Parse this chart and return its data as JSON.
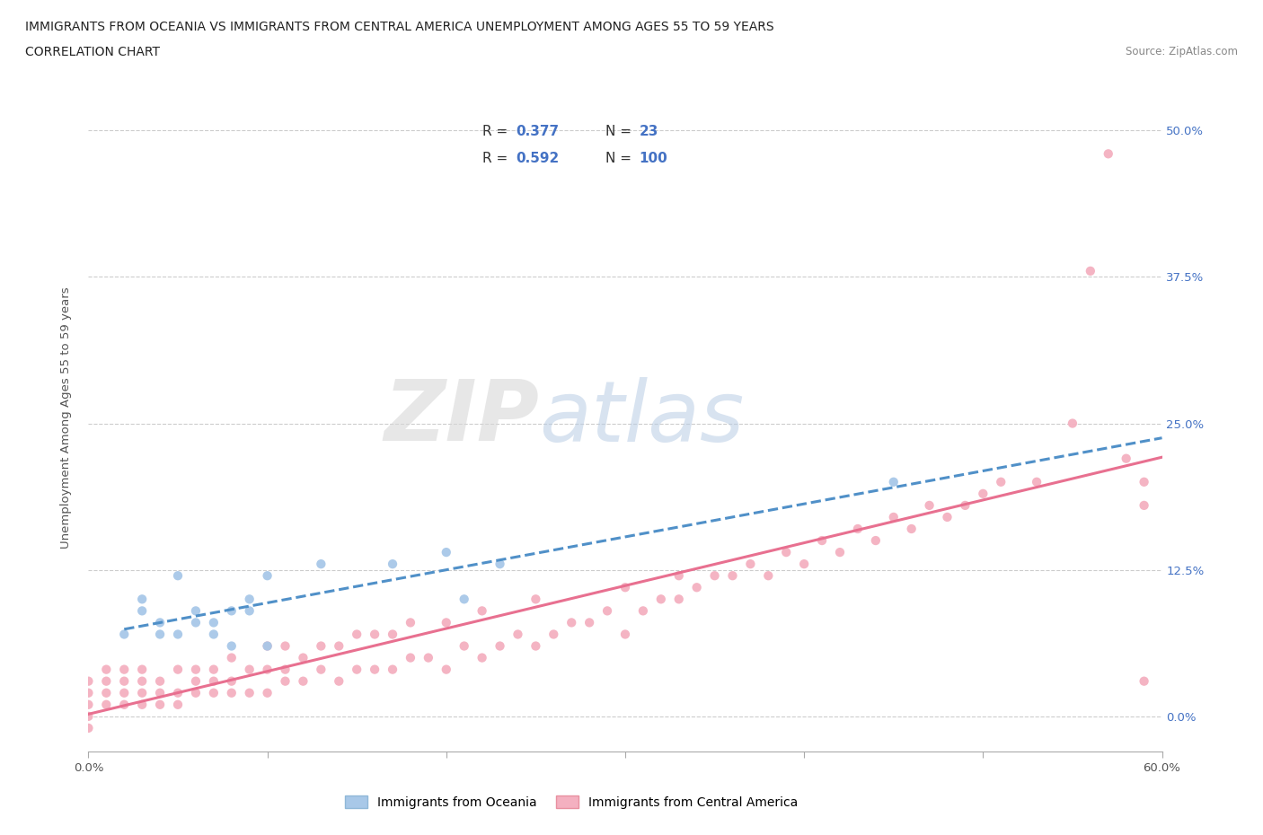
{
  "title_line1": "IMMIGRANTS FROM OCEANIA VS IMMIGRANTS FROM CENTRAL AMERICA UNEMPLOYMENT AMONG AGES 55 TO 59 YEARS",
  "title_line2": "CORRELATION CHART",
  "source_text": "Source: ZipAtlas.com",
  "ylabel": "Unemployment Among Ages 55 to 59 years",
  "xlim": [
    0.0,
    0.6
  ],
  "ylim": [
    -0.03,
    0.54
  ],
  "xtick_vals": [
    0.0,
    0.1,
    0.2,
    0.3,
    0.4,
    0.5,
    0.6
  ],
  "ytick_vals": [
    0.0,
    0.125,
    0.25,
    0.375,
    0.5
  ],
  "ytick_labels": [
    "0.0%",
    "12.5%",
    "25.0%",
    "37.5%",
    "50.0%"
  ],
  "r_oceania": 0.377,
  "n_oceania": 23,
  "r_central": 0.592,
  "n_central": 100,
  "oceania_color": "#a8c8e8",
  "central_color": "#f4b0c0",
  "line_oceania_color": "#5090c8",
  "line_central_color": "#e87090",
  "watermark_1": "ZIP",
  "watermark_2": "atlas",
  "oceania_scatter_x": [
    0.02,
    0.03,
    0.03,
    0.04,
    0.04,
    0.05,
    0.05,
    0.06,
    0.06,
    0.07,
    0.07,
    0.08,
    0.08,
    0.09,
    0.09,
    0.1,
    0.1,
    0.13,
    0.17,
    0.2,
    0.21,
    0.23,
    0.45
  ],
  "oceania_scatter_y": [
    0.07,
    0.09,
    0.1,
    0.07,
    0.08,
    0.07,
    0.12,
    0.08,
    0.09,
    0.07,
    0.08,
    0.06,
    0.09,
    0.09,
    0.1,
    0.06,
    0.12,
    0.13,
    0.13,
    0.14,
    0.1,
    0.13,
    0.2
  ],
  "central_scatter_x": [
    0.0,
    0.0,
    0.0,
    0.0,
    0.0,
    0.01,
    0.01,
    0.01,
    0.01,
    0.02,
    0.02,
    0.02,
    0.02,
    0.03,
    0.03,
    0.03,
    0.03,
    0.04,
    0.04,
    0.04,
    0.05,
    0.05,
    0.05,
    0.06,
    0.06,
    0.06,
    0.07,
    0.07,
    0.07,
    0.08,
    0.08,
    0.08,
    0.09,
    0.09,
    0.1,
    0.1,
    0.1,
    0.11,
    0.11,
    0.11,
    0.12,
    0.12,
    0.13,
    0.13,
    0.14,
    0.14,
    0.15,
    0.15,
    0.16,
    0.16,
    0.17,
    0.17,
    0.18,
    0.18,
    0.19,
    0.2,
    0.2,
    0.21,
    0.22,
    0.22,
    0.23,
    0.24,
    0.25,
    0.25,
    0.26,
    0.27,
    0.28,
    0.29,
    0.3,
    0.3,
    0.31,
    0.32,
    0.33,
    0.33,
    0.34,
    0.35,
    0.36,
    0.37,
    0.38,
    0.39,
    0.4,
    0.41,
    0.42,
    0.43,
    0.44,
    0.45,
    0.46,
    0.47,
    0.48,
    0.49,
    0.5,
    0.51,
    0.53,
    0.55,
    0.56,
    0.57,
    0.58,
    0.59,
    0.59,
    0.59
  ],
  "central_scatter_y": [
    -0.01,
    0.0,
    0.01,
    0.02,
    0.03,
    0.01,
    0.02,
    0.03,
    0.04,
    0.01,
    0.02,
    0.03,
    0.04,
    0.01,
    0.02,
    0.03,
    0.04,
    0.01,
    0.02,
    0.03,
    0.01,
    0.02,
    0.04,
    0.02,
    0.03,
    0.04,
    0.02,
    0.03,
    0.04,
    0.02,
    0.03,
    0.05,
    0.02,
    0.04,
    0.02,
    0.04,
    0.06,
    0.03,
    0.04,
    0.06,
    0.03,
    0.05,
    0.04,
    0.06,
    0.03,
    0.06,
    0.04,
    0.07,
    0.04,
    0.07,
    0.04,
    0.07,
    0.05,
    0.08,
    0.05,
    0.04,
    0.08,
    0.06,
    0.05,
    0.09,
    0.06,
    0.07,
    0.06,
    0.1,
    0.07,
    0.08,
    0.08,
    0.09,
    0.07,
    0.11,
    0.09,
    0.1,
    0.1,
    0.12,
    0.11,
    0.12,
    0.12,
    0.13,
    0.12,
    0.14,
    0.13,
    0.15,
    0.14,
    0.16,
    0.15,
    0.17,
    0.16,
    0.18,
    0.17,
    0.18,
    0.19,
    0.2,
    0.2,
    0.25,
    0.38,
    0.48,
    0.22,
    0.2,
    0.18,
    0.03
  ]
}
